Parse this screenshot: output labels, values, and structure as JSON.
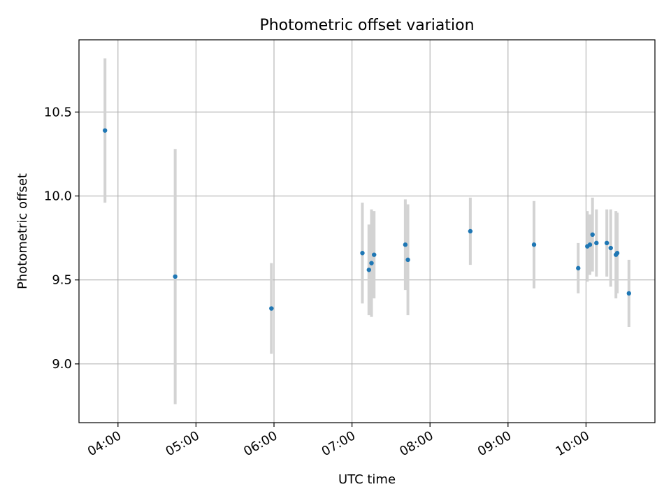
{
  "chart_data": {
    "type": "scatter",
    "title": "Photometric offset variation",
    "xlabel": "UTC time",
    "ylabel": "Photometric offset",
    "x_ticks": [
      "04:00",
      "05:00",
      "06:00",
      "07:00",
      "08:00",
      "09:00",
      "10:00"
    ],
    "y_ticks": [
      "9.0",
      "9.5",
      "10.0",
      "10.5"
    ],
    "xlim": [
      "03:30",
      "10:53"
    ],
    "ylim": [
      8.65,
      10.93
    ],
    "grid": true,
    "point_color": "#1f77b4",
    "errorbar_color": "#d3d3d3",
    "points": [
      {
        "time": "03:50",
        "y": 10.39,
        "err": 0.43
      },
      {
        "time": "04:44",
        "y": 9.52,
        "err": 0.76
      },
      {
        "time": "05:58",
        "y": 9.33,
        "err": 0.27
      },
      {
        "time": "07:08",
        "y": 9.66,
        "err": 0.3
      },
      {
        "time": "07:13",
        "y": 9.56,
        "err": 0.27
      },
      {
        "time": "07:15",
        "y": 9.6,
        "err": 0.32
      },
      {
        "time": "07:17",
        "y": 9.65,
        "err": 0.26
      },
      {
        "time": "07:41",
        "y": 9.71,
        "err": 0.27
      },
      {
        "time": "07:43",
        "y": 9.62,
        "err": 0.33
      },
      {
        "time": "08:31",
        "y": 9.79,
        "err": 0.2
      },
      {
        "time": "09:20",
        "y": 9.71,
        "err": 0.26
      },
      {
        "time": "09:54",
        "y": 9.57,
        "err": 0.15
      },
      {
        "time": "10:01",
        "y": 9.7,
        "err": 0.21
      },
      {
        "time": "10:03",
        "y": 9.71,
        "err": 0.18
      },
      {
        "time": "10:05",
        "y": 9.77,
        "err": 0.22
      },
      {
        "time": "10:08",
        "y": 9.72,
        "err": 0.2
      },
      {
        "time": "10:16",
        "y": 9.72,
        "err": 0.2
      },
      {
        "time": "10:19",
        "y": 9.69,
        "err": 0.23
      },
      {
        "time": "10:23",
        "y": 9.65,
        "err": 0.26
      },
      {
        "time": "10:24",
        "y": 9.66,
        "err": 0.24
      },
      {
        "time": "10:33",
        "y": 9.42,
        "err": 0.2
      }
    ]
  }
}
